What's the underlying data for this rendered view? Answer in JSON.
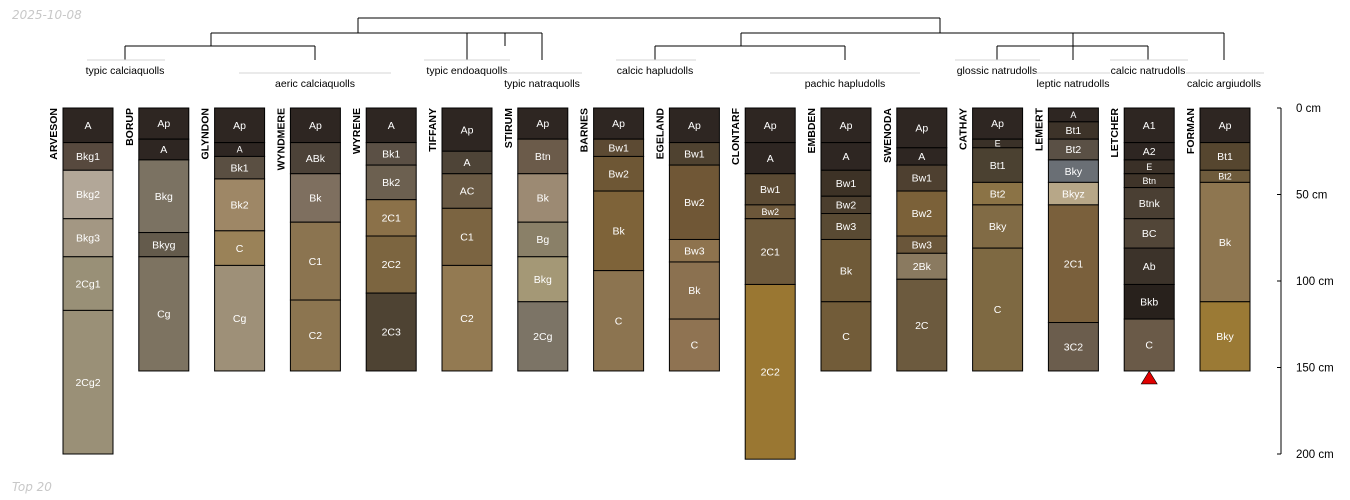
{
  "header": {
    "date_stamp": "2025-10-08"
  },
  "footer": {
    "label": "Top 20"
  },
  "depth_axis": {
    "ticks": [
      0,
      50,
      100,
      150,
      200
    ],
    "unit": "cm"
  },
  "taxa": [
    {
      "name": "typic calciaquolls",
      "profiles": [
        "ARVESON",
        "BORUP"
      ]
    },
    {
      "name": "aeric calciaquolls",
      "profiles": [
        "GLYNDON",
        "WYNDMERE",
        "WYRENE"
      ]
    },
    {
      "name": "typic endoaquolls",
      "profiles": [
        "TIFFANY"
      ]
    },
    {
      "name": "typic natraquolls",
      "profiles": [
        "STIRUM"
      ]
    },
    {
      "name": "calcic hapludolls",
      "profiles": [
        "BARNES",
        "EGELAND"
      ]
    },
    {
      "name": "pachic hapludolls",
      "profiles": [
        "CLONTARF",
        "EMBDEN",
        "SWENODA"
      ]
    },
    {
      "name": "glossic natrudolls",
      "profiles": [
        "CATHAY"
      ]
    },
    {
      "name": "leptic natrudolls",
      "profiles": [
        "LEMERT"
      ]
    },
    {
      "name": "calcic natrudolls",
      "profiles": [
        "LETCHER"
      ]
    },
    {
      "name": "calcic argiudolls",
      "profiles": [
        "FORMAN"
      ]
    }
  ],
  "profiles": [
    {
      "name": "ARVESON",
      "horizons": [
        {
          "name": "A",
          "top": 0,
          "bottom": 20,
          "color": "#2e2622"
        },
        {
          "name": "Bkg1",
          "top": 20,
          "bottom": 36,
          "color": "#57493e"
        },
        {
          "name": "Bkg2",
          "top": 36,
          "bottom": 64,
          "color": "#b2a798"
        },
        {
          "name": "Bkg3",
          "top": 64,
          "bottom": 86,
          "color": "#a39783"
        },
        {
          "name": "2Cg1",
          "top": 86,
          "bottom": 117,
          "color": "#999077"
        },
        {
          "name": "2Cg2",
          "top": 117,
          "bottom": 200,
          "color": "#9a9077"
        }
      ]
    },
    {
      "name": "BORUP",
      "horizons": [
        {
          "name": "Ap",
          "top": 0,
          "bottom": 18,
          "color": "#2e2622"
        },
        {
          "name": "A",
          "top": 18,
          "bottom": 30,
          "color": "#2e2622"
        },
        {
          "name": "Bkg",
          "top": 30,
          "bottom": 72,
          "color": "#7b7262"
        },
        {
          "name": "Bkyg",
          "top": 72,
          "bottom": 86,
          "color": "#645b4c"
        },
        {
          "name": "Cg",
          "top": 86,
          "bottom": 152,
          "color": "#7d7361"
        }
      ]
    },
    {
      "name": "GLYNDON",
      "horizons": [
        {
          "name": "Ap",
          "top": 0,
          "bottom": 20,
          "color": "#2e2622"
        },
        {
          "name": "A",
          "top": 20,
          "bottom": 28,
          "color": "#2e2622"
        },
        {
          "name": "Bk1",
          "top": 28,
          "bottom": 41,
          "color": "#5a4f42"
        },
        {
          "name": "Bk2",
          "top": 41,
          "bottom": 71,
          "color": "#9e8766"
        },
        {
          "name": "C",
          "top": 71,
          "bottom": 91,
          "color": "#9a8258"
        },
        {
          "name": "Cg",
          "top": 91,
          "bottom": 152,
          "color": "#9e9078"
        }
      ]
    },
    {
      "name": "WYNDMERE",
      "horizons": [
        {
          "name": "Ap",
          "top": 0,
          "bottom": 20,
          "color": "#2e2622"
        },
        {
          "name": "ABk",
          "top": 20,
          "bottom": 38,
          "color": "#4c4238"
        },
        {
          "name": "Bk",
          "top": 38,
          "bottom": 66,
          "color": "#7e6f5f"
        },
        {
          "name": "C1",
          "top": 66,
          "bottom": 111,
          "color": "#8b7450"
        },
        {
          "name": "C2",
          "top": 111,
          "bottom": 152,
          "color": "#8c7550"
        }
      ]
    },
    {
      "name": "WYRENE",
      "horizons": [
        {
          "name": "A",
          "top": 0,
          "bottom": 20,
          "color": "#2e2622"
        },
        {
          "name": "Bk1",
          "top": 20,
          "bottom": 33,
          "color": "#5b5045"
        },
        {
          "name": "Bk2",
          "top": 33,
          "bottom": 53,
          "color": "#6c6050"
        },
        {
          "name": "2C1",
          "top": 53,
          "bottom": 74,
          "color": "#8b7149"
        },
        {
          "name": "2C2",
          "top": 74,
          "bottom": 107,
          "color": "#7c6540"
        },
        {
          "name": "2C3",
          "top": 107,
          "bottom": 152,
          "color": "#4e4333"
        }
      ]
    },
    {
      "name": "TIFFANY",
      "horizons": [
        {
          "name": "Ap",
          "top": 0,
          "bottom": 25,
          "color": "#2e2622"
        },
        {
          "name": "A",
          "top": 25,
          "bottom": 38,
          "color": "#4e4437"
        },
        {
          "name": "AC",
          "top": 38,
          "bottom": 58,
          "color": "#6a5a44"
        },
        {
          "name": "C1",
          "top": 58,
          "bottom": 91,
          "color": "#7b6441"
        },
        {
          "name": "C2",
          "top": 91,
          "bottom": 152,
          "color": "#937a52"
        }
      ]
    },
    {
      "name": "STIRUM",
      "horizons": [
        {
          "name": "Ap",
          "top": 0,
          "bottom": 18,
          "color": "#2e2622"
        },
        {
          "name": "Btn",
          "top": 18,
          "bottom": 38,
          "color": "#6b5b4a"
        },
        {
          "name": "Bk",
          "top": 38,
          "bottom": 66,
          "color": "#9c8a73"
        },
        {
          "name": "Bg",
          "top": 66,
          "bottom": 86,
          "color": "#8a8068"
        },
        {
          "name": "Bkg",
          "top": 86,
          "bottom": 112,
          "color": "#a49876"
        },
        {
          "name": "2Cg",
          "top": 112,
          "bottom": 152,
          "color": "#7c7466"
        }
      ]
    },
    {
      "name": "BARNES",
      "horizons": [
        {
          "name": "Ap",
          "top": 0,
          "bottom": 18,
          "color": "#2e2622"
        },
        {
          "name": "Bw1",
          "top": 18,
          "bottom": 28,
          "color": "#5c4a33"
        },
        {
          "name": "Bw2",
          "top": 28,
          "bottom": 48,
          "color": "#6e5735"
        },
        {
          "name": "Bk",
          "top": 48,
          "bottom": 94,
          "color": "#7e6339"
        },
        {
          "name": "C",
          "top": 94,
          "bottom": 152,
          "color": "#8c7450"
        }
      ]
    },
    {
      "name": "EGELAND",
      "horizons": [
        {
          "name": "Ap",
          "top": 0,
          "bottom": 20,
          "color": "#2e2622"
        },
        {
          "name": "Bw1",
          "top": 20,
          "bottom": 33,
          "color": "#4f4230"
        },
        {
          "name": "Bw2",
          "top": 33,
          "bottom": 76,
          "color": "#705736"
        },
        {
          "name": "Bw3",
          "top": 76,
          "bottom": 89,
          "color": "#8e734e"
        },
        {
          "name": "Bk",
          "top": 89,
          "bottom": 122,
          "color": "#8b7150"
        },
        {
          "name": "C",
          "top": 122,
          "bottom": 152,
          "color": "#8f7352"
        }
      ]
    },
    {
      "name": "CLONTARF",
      "horizons": [
        {
          "name": "Ap",
          "top": 0,
          "bottom": 20,
          "color": "#2e2622"
        },
        {
          "name": "A",
          "top": 20,
          "bottom": 38,
          "color": "#2e2622"
        },
        {
          "name": "Bw1",
          "top": 38,
          "bottom": 56,
          "color": "#5b4a33"
        },
        {
          "name": "Bw2",
          "top": 56,
          "bottom": 64,
          "color": "#6c573a"
        },
        {
          "name": "2C1",
          "top": 64,
          "bottom": 102,
          "color": "#6e5a3c"
        },
        {
          "name": "2C2",
          "top": 102,
          "bottom": 203,
          "color": "#9a7732"
        }
      ]
    },
    {
      "name": "EMBDEN",
      "horizons": [
        {
          "name": "Ap",
          "top": 0,
          "bottom": 20,
          "color": "#2e2622"
        },
        {
          "name": "A",
          "top": 20,
          "bottom": 36,
          "color": "#2e2622"
        },
        {
          "name": "Bw1",
          "top": 36,
          "bottom": 51,
          "color": "#3d3226"
        },
        {
          "name": "Bw2",
          "top": 51,
          "bottom": 61,
          "color": "#4b3e2e"
        },
        {
          "name": "Bw3",
          "top": 61,
          "bottom": 76,
          "color": "#594a33"
        },
        {
          "name": "Bk",
          "top": 76,
          "bottom": 112,
          "color": "#6f5a38"
        },
        {
          "name": "C",
          "top": 112,
          "bottom": 152,
          "color": "#725c39"
        }
      ]
    },
    {
      "name": "SWENODA",
      "horizons": [
        {
          "name": "Ap",
          "top": 0,
          "bottom": 23,
          "color": "#2e2622"
        },
        {
          "name": "A",
          "top": 23,
          "bottom": 33,
          "color": "#2e2622"
        },
        {
          "name": "Bw1",
          "top": 33,
          "bottom": 48,
          "color": "#4e4030"
        },
        {
          "name": "Bw2",
          "top": 48,
          "bottom": 74,
          "color": "#7b6139"
        },
        {
          "name": "Bw3",
          "top": 74,
          "bottom": 84,
          "color": "#6a563a"
        },
        {
          "name": "2Bk",
          "top": 84,
          "bottom": 99,
          "color": "#8a7a60"
        },
        {
          "name": "2C",
          "top": 99,
          "bottom": 152,
          "color": "#6c5a3e"
        }
      ]
    },
    {
      "name": "CATHAY",
      "horizons": [
        {
          "name": "Ap",
          "top": 0,
          "bottom": 18,
          "color": "#2e2622"
        },
        {
          "name": "E",
          "top": 18,
          "bottom": 23,
          "color": "#3a3128"
        },
        {
          "name": "Bt1",
          "top": 23,
          "bottom": 43,
          "color": "#4b4131"
        },
        {
          "name": "Bt2",
          "top": 43,
          "bottom": 56,
          "color": "#8b7346"
        },
        {
          "name": "Bky",
          "top": 56,
          "bottom": 81,
          "color": "#816b45"
        },
        {
          "name": "C",
          "top": 81,
          "bottom": 152,
          "color": "#7e6942"
        }
      ]
    },
    {
      "name": "LEMERT",
      "horizons": [
        {
          "name": "A",
          "top": 0,
          "bottom": 8,
          "color": "#2e2622"
        },
        {
          "name": "Bt1",
          "top": 8,
          "bottom": 18,
          "color": "#3d3329"
        },
        {
          "name": "Bt2",
          "top": 18,
          "bottom": 30,
          "color": "#5a5045"
        },
        {
          "name": "Bky",
          "top": 30,
          "bottom": 43,
          "color": "#6a6f75"
        },
        {
          "name": "Bkyz",
          "top": 43,
          "bottom": 56,
          "color": "#b7a788"
        },
        {
          "name": "2C1",
          "top": 56,
          "bottom": 124,
          "color": "#7a603c"
        },
        {
          "name": "3C2",
          "top": 124,
          "bottom": 152,
          "color": "#6b5d4d"
        }
      ]
    },
    {
      "name": "LETCHER",
      "horizons": [
        {
          "name": "A1",
          "top": 0,
          "bottom": 20,
          "color": "#2e2622"
        },
        {
          "name": "A2",
          "top": 20,
          "bottom": 30,
          "color": "#2e2622"
        },
        {
          "name": "E",
          "top": 30,
          "bottom": 38,
          "color": "#3a3027"
        },
        {
          "name": "Btn",
          "top": 38,
          "bottom": 46,
          "color": "#3f3429"
        },
        {
          "name": "Btnk",
          "top": 46,
          "bottom": 64,
          "color": "#4a3f33"
        },
        {
          "name": "BC",
          "top": 64,
          "bottom": 81,
          "color": "#524638"
        },
        {
          "name": "Ab",
          "top": 81,
          "bottom": 102,
          "color": "#3c332a"
        },
        {
          "name": "Bkb",
          "top": 102,
          "bottom": 122,
          "color": "#28211c"
        },
        {
          "name": "C",
          "top": 122,
          "bottom": 152,
          "color": "#6a5a48"
        }
      ]
    },
    {
      "name": "FORMAN",
      "horizons": [
        {
          "name": "Ap",
          "top": 0,
          "bottom": 20,
          "color": "#2e2622"
        },
        {
          "name": "Bt1",
          "top": 20,
          "bottom": 36,
          "color": "#56462f"
        },
        {
          "name": "Bt2",
          "top": 36,
          "bottom": 43,
          "color": "#6e5b3c"
        },
        {
          "name": "Bk",
          "top": 43,
          "bottom": 112,
          "color": "#8e7650"
        },
        {
          "name": "Bky",
          "top": 112,
          "bottom": 152,
          "color": "#9b7a35"
        }
      ]
    }
  ],
  "marker": {
    "profile": "LETCHER",
    "depth": 152,
    "shape": "triangle-up",
    "color": "#e00000"
  },
  "colors": {
    "line": "#000000",
    "taxon_underline": "#d4d4d4",
    "label_light": "#ffffff",
    "label_dark": "#ffffff"
  }
}
